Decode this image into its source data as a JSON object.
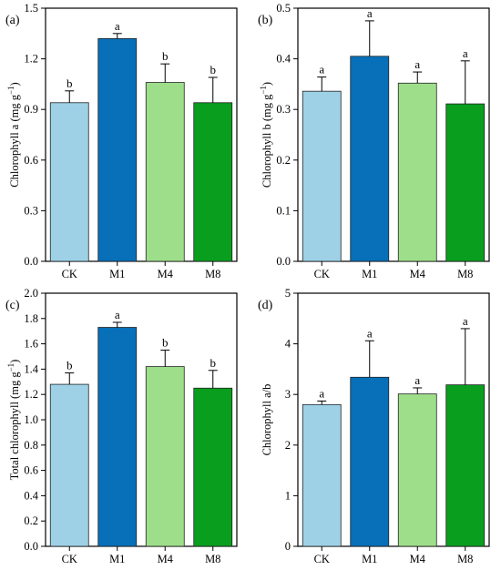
{
  "chart_data": [
    {
      "type": "bar",
      "panel_label": "(a)",
      "ylabel": "Chlorophyll a (mg g",
      "ylabel_sup": "−1",
      "ylabel_close": ")",
      "categories": [
        "CK",
        "M1",
        "M4",
        "M8"
      ],
      "values": [
        0.94,
        1.32,
        1.06,
        0.94
      ],
      "errors": [
        0.07,
        0.03,
        0.11,
        0.15
      ],
      "significance": [
        "b",
        "a",
        "b",
        "b"
      ],
      "ylim": [
        0,
        1.5
      ],
      "yticks": [
        0.0,
        0.3,
        0.6,
        0.9,
        1.2,
        1.5
      ],
      "ytick_labels": [
        "0.0",
        "0.3",
        "0.6",
        "0.9",
        "1.2",
        "1.5"
      ],
      "grid": false
    },
    {
      "type": "bar",
      "panel_label": "(b)",
      "ylabel": "Chlorophyll b (mg g",
      "ylabel_sup": "−1",
      "ylabel_close": ")",
      "categories": [
        "CK",
        "M1",
        "M4",
        "M8"
      ],
      "values": [
        0.336,
        0.405,
        0.352,
        0.311
      ],
      "errors": [
        0.028,
        0.07,
        0.022,
        0.085
      ],
      "significance": [
        "a",
        "a",
        "a",
        "a"
      ],
      "ylim": [
        0,
        0.5
      ],
      "yticks": [
        0.0,
        0.1,
        0.2,
        0.3,
        0.4,
        0.5
      ],
      "ytick_labels": [
        "0.0",
        "0.1",
        "0.2",
        "0.3",
        "0.4",
        "0.5"
      ],
      "grid": false
    },
    {
      "type": "bar",
      "panel_label": "(c)",
      "ylabel": "Total chlorophyll (mg g",
      "ylabel_sup": "−1",
      "ylabel_close": ")",
      "categories": [
        "CK",
        "M1",
        "M4",
        "M8"
      ],
      "values": [
        1.28,
        1.73,
        1.42,
        1.25
      ],
      "errors": [
        0.09,
        0.04,
        0.13,
        0.14
      ],
      "significance": [
        "b",
        "a",
        "b",
        "b"
      ],
      "ylim": [
        0,
        2.0
      ],
      "yticks": [
        0.0,
        0.2,
        0.4,
        0.6,
        0.8,
        1.0,
        1.2,
        1.4,
        1.6,
        1.8,
        2.0
      ],
      "ytick_labels": [
        "0.0",
        "0.2",
        "0.4",
        "0.6",
        "0.8",
        "1.0",
        "1.2",
        "1.4",
        "1.6",
        "1.8",
        "2.0"
      ],
      "grid": false
    },
    {
      "type": "bar",
      "panel_label": "(d)",
      "ylabel": "Chlorophyll a/b",
      "ylabel_sup": "",
      "ylabel_close": "",
      "categories": [
        "CK",
        "M1",
        "M4",
        "M8"
      ],
      "values": [
        2.8,
        3.34,
        3.01,
        3.19
      ],
      "errors": [
        0.07,
        0.72,
        0.12,
        1.11
      ],
      "significance": [
        "a",
        "a",
        "a",
        "a"
      ],
      "ylim": [
        0,
        5
      ],
      "yticks": [
        0,
        1,
        2,
        3,
        4,
        5
      ],
      "ytick_labels": [
        "0",
        "1",
        "2",
        "3",
        "4",
        "5"
      ],
      "grid": false
    }
  ],
  "colors": {
    "CK": "#9ed1e6",
    "M1": "#0870b8",
    "M4": "#9ede8a",
    "M8": "#0a9e1e",
    "axis": "#000000"
  }
}
